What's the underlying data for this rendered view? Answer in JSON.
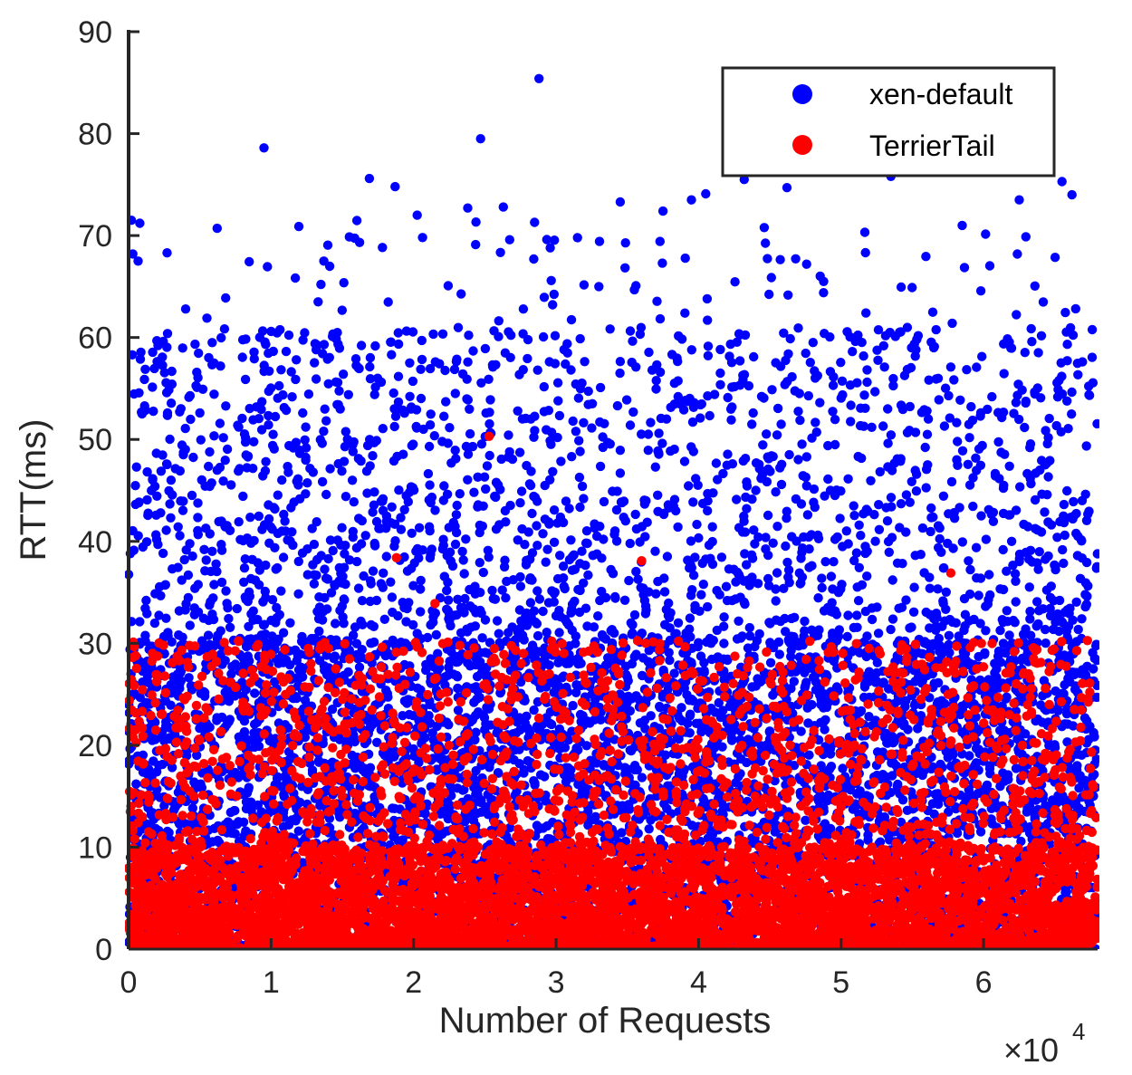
{
  "chart_data": {
    "type": "scatter",
    "xlabel": "Number of Requests",
    "ylabel": "RTT(ms)",
    "x_multiplier_label": "×10",
    "x_multiplier_exponent": "4",
    "xlim": [
      0,
      6.8
    ],
    "ylim": [
      0,
      90
    ],
    "x_ticks": [
      0,
      1,
      2,
      3,
      4,
      5,
      6
    ],
    "x_tick_labels": [
      "0",
      "1",
      "2",
      "3",
      "4",
      "5",
      "6"
    ],
    "y_ticks": [
      0,
      10,
      20,
      30,
      40,
      50,
      60,
      70,
      80,
      90
    ],
    "y_tick_labels": [
      "0",
      "10",
      "20",
      "30",
      "40",
      "50",
      "60",
      "70",
      "80",
      "90"
    ],
    "grid": false,
    "legend_position": "top-right",
    "series": [
      {
        "name": "xen-default",
        "color": "#0000ff",
        "distribution": "dense band 0–30 ms across all requests, scattered points 30–62 ms, sparse outliers up to ~85 ms",
        "highlight_points": [
          [
            0.02,
            71.5
          ],
          [
            0.03,
            68.2
          ],
          [
            0.27,
            68.3
          ],
          [
            0.95,
            78.6
          ],
          [
            1.37,
            67.5
          ],
          [
            1.69,
            75.6
          ],
          [
            1.87,
            74.8
          ],
          [
            2.38,
            72.7
          ],
          [
            2.47,
            79.5
          ],
          [
            2.63,
            72.8
          ],
          [
            2.88,
            85.4
          ],
          [
            3.15,
            69.8
          ],
          [
            3.45,
            73.3
          ],
          [
            3.75,
            72.4
          ],
          [
            3.95,
            73.5
          ],
          [
            4.05,
            74.1
          ],
          [
            4.32,
            75.5
          ],
          [
            4.62,
            74.7
          ],
          [
            4.88,
            76.9
          ],
          [
            5.35,
            75.8
          ],
          [
            5.85,
            71.0
          ],
          [
            6.25,
            73.5
          ],
          [
            6.55,
            75.3
          ],
          [
            6.62,
            74.0
          ],
          [
            0.55,
            61.9
          ],
          [
            1.0,
            60.6
          ],
          [
            1.33,
            63.5
          ],
          [
            2.77,
            62.8
          ],
          [
            3.3,
            65.0
          ],
          [
            4.06,
            63.8
          ]
        ]
      },
      {
        "name": "TerrierTail",
        "color": "#ff0000",
        "distribution": "dense band 0–10 ms across all requests, thinner band 10–30 ms, a few outliers 34–51 ms",
        "highlight_points": [
          [
            1.88,
            38.4
          ],
          [
            2.15,
            33.9
          ],
          [
            2.53,
            50.3
          ],
          [
            3.6,
            38.1
          ],
          [
            5.77,
            36.9
          ]
        ]
      }
    ]
  }
}
